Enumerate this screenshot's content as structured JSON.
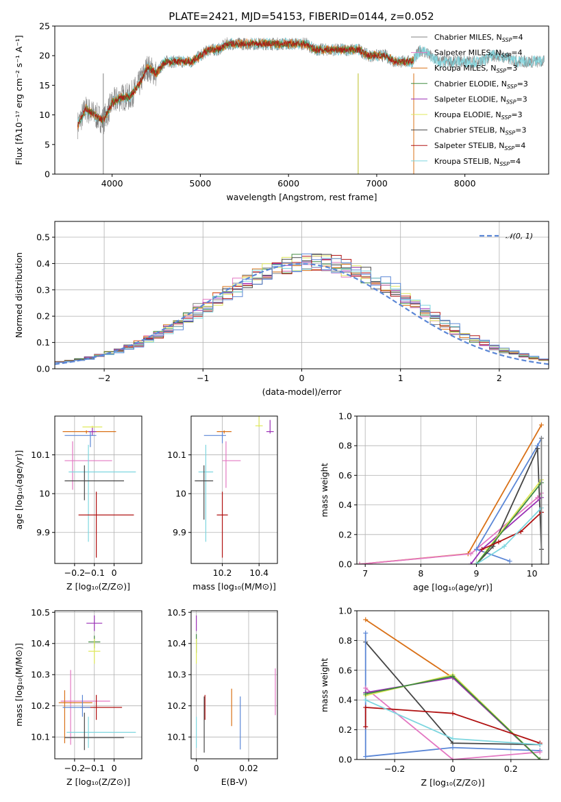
{
  "figure_title": "PLATE=2421, MJD=54153, FIBERID=0144, z=0.052",
  "colors": {
    "Chabrier MILES": "#808080",
    "Salpeter MILES": "#e377c2",
    "Kroupa MILES": "#d97016",
    "Chabrier ELODIE": "#3f8a3f",
    "Salpeter ELODIE": "#9a2fb5",
    "Kroupa ELODIE": "#dfe85a",
    "Chabrier STELIB": "#444444",
    "Salpeter STELIB": "#b01010",
    "Kroupa STELIB": "#7dd6df",
    "blue": "#5a86d6",
    "olive": "#bcbd22"
  },
  "chart_data": [
    {
      "id": "spectrum",
      "type": "line",
      "title": "PLATE=2421, MJD=54153, FIBERID=0144, z=0.052",
      "xlabel": "wavelength [Angstrom, rest frame]",
      "ylabel": "Flux [fλ10⁻¹⁷ erg cm⁻² s⁻¹ A⁻¹]",
      "xlim": [
        3350,
        8950
      ],
      "ylim": [
        0,
        25
      ],
      "xticks": [
        4000,
        5000,
        6000,
        7000,
        8000
      ],
      "yticks": [
        0,
        5,
        10,
        15,
        20,
        25
      ],
      "grid": false,
      "legend_position": "upper right",
      "legend": [
        {
          "label": "Chabrier MILES, N",
          "sub": "SSP",
          "tail": "=4",
          "color": "#808080"
        },
        {
          "label": "Salpeter MILES, N",
          "sub": "SSP",
          "tail": "=4",
          "color": "#e377c2"
        },
        {
          "label": "Kroupa MILES, N",
          "sub": "SSP",
          "tail": "=3",
          "color": "#d97016"
        },
        {
          "label": "Chabrier ELODIE, N",
          "sub": "SSP",
          "tail": "=3",
          "color": "#3f8a3f"
        },
        {
          "label": "Salpeter ELODIE, N",
          "sub": "SSP",
          "tail": "=3",
          "color": "#9a2fb5"
        },
        {
          "label": "Kroupa ELODIE, N",
          "sub": "SSP",
          "tail": "=3",
          "color": "#dfe85a"
        },
        {
          "label": "Chabrier STELIB, N",
          "sub": "SSP",
          "tail": "=3",
          "color": "#444444"
        },
        {
          "label": "Salpeter STELIB, N",
          "sub": "SSP",
          "tail": "=4",
          "color": "#b01010"
        },
        {
          "label": "Kroupa STELIB, N",
          "sub": "SSP",
          "tail": "=4",
          "color": "#7dd6df"
        }
      ],
      "data_points": {
        "x": [
          3600,
          3700,
          3800,
          3900,
          4000,
          4100,
          4200,
          4300,
          4400,
          4500,
          4600,
          4700,
          4800,
          4900,
          5000,
          5100,
          5200,
          5300,
          5400,
          5500,
          5600,
          5700,
          5800,
          5900,
          6000,
          6100,
          6200,
          6300,
          6400,
          6500,
          6600,
          6700,
          6800,
          6900,
          7000,
          7100,
          7200,
          7300,
          7400,
          7500,
          7600,
          7700,
          7800,
          7900,
          8000,
          8100,
          8200,
          8300,
          8400,
          8600,
          8800
        ],
        "y": [
          8,
          11,
          10,
          9,
          12,
          13,
          13,
          15,
          18,
          17,
          19,
          19,
          19,
          19,
          20,
          21,
          21,
          22,
          22,
          22,
          22,
          22,
          22,
          22,
          22,
          22,
          22,
          21,
          21,
          21,
          21,
          21,
          21,
          20,
          20,
          20,
          19,
          19,
          19,
          21,
          20,
          19,
          19,
          19,
          19,
          19,
          19,
          20,
          20,
          19,
          19
        ]
      },
      "dropout_lines": [
        {
          "x": 6790,
          "color": "#bcbd22"
        },
        {
          "x": 7420,
          "color": "#d97016"
        },
        {
          "x": 3900,
          "color": "#808080"
        }
      ]
    },
    {
      "id": "residual_hist",
      "type": "line",
      "xlabel": "(data-model)/error",
      "ylabel": "Normed distribution",
      "xlim": [
        -2.5,
        2.5
      ],
      "ylim": [
        0,
        0.56
      ],
      "xticks": [
        -2,
        -1,
        0,
        1,
        2
      ],
      "yticks": [
        0.0,
        0.1,
        0.2,
        0.3,
        0.4,
        0.5
      ],
      "grid": true,
      "legend_position": "upper right",
      "legend_label": "𝒩(0, 1)",
      "bin_width": 0.1,
      "note": "step histograms for each of the 9 SSP model fits follow a standard normal curve"
    },
    {
      "id": "age_vs_Z",
      "type": "scatter",
      "xlabel": "Z [log₁₀(Z/Z⊙)]",
      "ylabel": "age  [log₁₀(age/yr)]",
      "xlim": [
        -0.3,
        0.14
      ],
      "ylim": [
        9.82,
        10.2
      ],
      "xticks": [
        -0.2,
        -0.1,
        0.0
      ],
      "yticks": [
        9.9,
        10.0,
        10.1
      ],
      "grid": true,
      "points": [
        {
          "x": -0.11,
          "y": 10.172,
          "xerr": [
            0.05,
            0.05
          ],
          "yerr": [
            0.002,
            0.003
          ],
          "color": "#dfe85a"
        },
        {
          "x": -0.14,
          "y": 10.16,
          "xerr": [
            0.12,
            0.15
          ],
          "yerr": [
            0.005,
            0.003
          ],
          "color": "#d97016"
        },
        {
          "x": -0.11,
          "y": 10.16,
          "xerr": [
            0.02,
            0.02
          ],
          "yerr": [
            0.01,
            0.01
          ],
          "color": "#9a2fb5"
        },
        {
          "x": -0.12,
          "y": 10.15,
          "xerr": [
            0.13,
            0.03
          ],
          "yerr": [
            0.03,
            0.01
          ],
          "color": "#5a86d6"
        },
        {
          "x": -0.21,
          "y": 10.085,
          "xerr": [
            0.04,
            0.2
          ],
          "yerr": [
            0.075,
            0.05
          ],
          "color": "#e377c2"
        },
        {
          "x": -0.13,
          "y": 10.056,
          "xerr": [
            0.1,
            0.24
          ],
          "yerr": [
            0.18,
            0.07
          ],
          "color": "#7dd6df"
        },
        {
          "x": -0.15,
          "y": 10.033,
          "xerr": [
            0.1,
            0.2
          ],
          "yerr": [
            0.05,
            0.04
          ],
          "color": "#444444"
        },
        {
          "x": -0.09,
          "y": 9.945,
          "xerr": [
            0.09,
            0.19
          ],
          "yerr": [
            0.11,
            0.06
          ],
          "color": "#b01010"
        }
      ]
    },
    {
      "id": "age_vs_mass",
      "type": "scatter",
      "xlabel": "mass [log₁₀(M/M⊙)]",
      "ylabel": "",
      "xlim": [
        10.03,
        10.5
      ],
      "ylim": [
        9.82,
        10.2
      ],
      "xticks": [
        10.2,
        10.4
      ],
      "yticks": [
        9.9,
        10.0,
        10.1
      ],
      "grid": true,
      "points": [
        {
          "x": 10.4,
          "y": 10.175,
          "xerr": [
            0.02,
            0.02
          ],
          "yerr": [
            0.003,
            0.04
          ],
          "color": "#dfe85a"
        },
        {
          "x": 10.46,
          "y": 10.16,
          "xerr": [
            0.02,
            0.02
          ],
          "yerr": [
            0.005,
            0.03
          ],
          "color": "#9a2fb5"
        },
        {
          "x": 10.21,
          "y": 10.16,
          "xerr": [
            0.04,
            0.04
          ],
          "yerr": [
            0.005,
            0.003
          ],
          "color": "#d97016"
        },
        {
          "x": 10.2,
          "y": 10.15,
          "xerr": [
            0.1,
            0.02
          ],
          "yerr": [
            0.02,
            0.01
          ],
          "color": "#5a86d6"
        },
        {
          "x": 10.22,
          "y": 10.085,
          "xerr": [
            0.02,
            0.08
          ],
          "yerr": [
            0.07,
            0.05
          ],
          "color": "#e377c2"
        },
        {
          "x": 10.11,
          "y": 10.056,
          "xerr": [
            0.04,
            0.04
          ],
          "yerr": [
            0.18,
            0.07
          ],
          "color": "#7dd6df"
        },
        {
          "x": 10.1,
          "y": 10.033,
          "xerr": [
            0.05,
            0.05
          ],
          "yerr": [
            0.1,
            0.04
          ],
          "color": "#444444"
        },
        {
          "x": 10.2,
          "y": 9.945,
          "xerr": [
            0.03,
            0.03
          ],
          "yerr": [
            0.11,
            0.06
          ],
          "color": "#b01010"
        }
      ]
    },
    {
      "id": "massweight_vs_age",
      "type": "line",
      "xlabel": "age  [log₁₀(age/yr)]",
      "ylabel": "mass weight",
      "xlim": [
        6.85,
        10.3
      ],
      "ylim": [
        0,
        1
      ],
      "xticks": [
        7,
        8,
        9,
        10
      ],
      "yticks": [
        0.0,
        0.2,
        0.4,
        0.6,
        0.8,
        1.0
      ],
      "grid": true,
      "series": [
        {
          "color": "#d97016",
          "x": [
            6.9,
            8.85,
            10.17
          ],
          "y": [
            0.0,
            0.07,
            0.94
          ]
        },
        {
          "color": "#e377c2",
          "x": [
            6.9,
            8.9,
            10.1,
            10.17
          ],
          "y": [
            0.0,
            0.07,
            0.45,
            0.48
          ]
        },
        {
          "color": "#5a86d6",
          "x": [
            9.6,
            9.0,
            10.1,
            10.17
          ],
          "y": [
            0.02,
            0.1,
            0.8,
            0.85
          ]
        },
        {
          "color": "#444444",
          "x": [
            9.0,
            9.3,
            10.1,
            10.17
          ],
          "y": [
            0.0,
            0.12,
            0.78,
            0.1
          ]
        },
        {
          "color": "#9a2fb5",
          "x": [
            8.9,
            9.1,
            10.17
          ],
          "y": [
            0.0,
            0.1,
            0.45
          ]
        },
        {
          "color": "#dfe85a",
          "x": [
            9.0,
            9.2,
            10.17
          ],
          "y": [
            0.0,
            0.1,
            0.57
          ]
        },
        {
          "color": "#3f8a3f",
          "x": [
            9.0,
            10.17
          ],
          "y": [
            0.0,
            0.55
          ]
        },
        {
          "color": "#b01010",
          "x": [
            9.1,
            9.4,
            9.8,
            10.17
          ],
          "y": [
            0.1,
            0.15,
            0.22,
            0.35
          ]
        },
        {
          "color": "#7dd6df",
          "x": [
            9.0,
            9.5,
            10.17
          ],
          "y": [
            0.0,
            0.12,
            0.38
          ]
        },
        {
          "color": "#808080",
          "x": [
            10.17,
            10.17
          ],
          "y": [
            0.0,
            0.85
          ]
        }
      ]
    },
    {
      "id": "mass_vs_Z",
      "type": "scatter",
      "xlabel": "Z [log₁₀(Z/Z⊙)]",
      "ylabel": "mass [log₁₀(M/M⊙)]",
      "xlim": [
        -0.3,
        0.14
      ],
      "ylim": [
        10.03,
        10.505
      ],
      "xticks": [
        -0.2,
        -0.1,
        0.0
      ],
      "yticks": [
        10.1,
        10.2,
        10.3,
        10.4,
        10.5
      ],
      "grid": true,
      "points": [
        {
          "x": -0.1,
          "y": 10.465,
          "xerr": [
            0.04,
            0.04
          ],
          "yerr": [
            0.025,
            0.025
          ],
          "color": "#9a2fb5"
        },
        {
          "x": -0.1,
          "y": 10.405,
          "xerr": [
            0.03,
            0.03
          ],
          "yerr": [
            0.02,
            0.02
          ],
          "color": "#3f8a3f"
        },
        {
          "x": -0.1,
          "y": 10.375,
          "xerr": [
            0.03,
            0.03
          ],
          "yerr": [
            0.04,
            0.04
          ],
          "color": "#dfe85a"
        },
        {
          "x": -0.22,
          "y": 10.215,
          "xerr": [
            0.05,
            0.2
          ],
          "yerr": [
            0.14,
            0.1
          ],
          "color": "#e377c2"
        },
        {
          "x": -0.25,
          "y": 10.21,
          "xerr": [
            0.03,
            0.14
          ],
          "yerr": [
            0.13,
            0.04
          ],
          "color": "#d97016"
        },
        {
          "x": -0.09,
          "y": 10.195,
          "xerr": [
            0.08,
            0.13
          ],
          "yerr": [
            0.04,
            0.04
          ],
          "color": "#b01010"
        },
        {
          "x": -0.16,
          "y": 10.195,
          "xerr": [
            0.1,
            0.04
          ],
          "yerr": [
            0.03,
            0.04
          ],
          "color": "#5a86d6"
        },
        {
          "x": -0.13,
          "y": 10.115,
          "xerr": [
            0.11,
            0.24
          ],
          "yerr": [
            0.05,
            0.05
          ],
          "color": "#7dd6df"
        },
        {
          "x": -0.15,
          "y": 10.098,
          "xerr": [
            0.1,
            0.2
          ],
          "yerr": [
            0.04,
            0.08
          ],
          "color": "#444444"
        }
      ]
    },
    {
      "id": "mass_vs_EBV",
      "type": "scatter",
      "xlabel": "E(B-V)",
      "ylabel": "",
      "xlim": [
        -0.002,
        0.031
      ],
      "ylim": [
        10.03,
        10.505
      ],
      "xticks": [
        0.0,
        0.02
      ],
      "yticks": [
        10.1,
        10.2,
        10.3,
        10.4,
        10.5
      ],
      "grid": true,
      "points": [
        {
          "x": 0.0,
          "y": 10.465,
          "xerr": [
            0,
            0
          ],
          "yerr": [
            0.025,
            0.025
          ],
          "color": "#9a2fb5"
        },
        {
          "x": 0.0,
          "y": 10.4,
          "xerr": [
            0,
            0
          ],
          "yerr": [
            0.03,
            0.03
          ],
          "color": "#3f8a3f"
        },
        {
          "x": 0.0,
          "y": 10.375,
          "xerr": [
            0,
            0
          ],
          "yerr": [
            0.04,
            0.04
          ],
          "color": "#dfe85a"
        },
        {
          "x": 0.0,
          "y": 10.115,
          "xerr": [
            0,
            0
          ],
          "yerr": [
            0.05,
            0.05
          ],
          "color": "#7dd6df"
        },
        {
          "x": 0.003,
          "y": 10.14,
          "xerr": [
            0,
            0
          ],
          "yerr": [
            0.09,
            0.09
          ],
          "color": "#444444"
        },
        {
          "x": 0.0033,
          "y": 10.195,
          "xerr": [
            0,
            0
          ],
          "yerr": [
            0.04,
            0.04
          ],
          "color": "#b01010"
        },
        {
          "x": 0.0135,
          "y": 10.195,
          "xerr": [
            0,
            0
          ],
          "yerr": [
            0.06,
            0.06
          ],
          "color": "#d97016"
        },
        {
          "x": 0.0168,
          "y": 10.16,
          "xerr": [
            0,
            0
          ],
          "yerr": [
            0.1,
            0.07
          ],
          "color": "#5a86d6"
        },
        {
          "x": 0.0302,
          "y": 10.24,
          "xerr": [
            0,
            0
          ],
          "yerr": [
            0.07,
            0.08
          ],
          "color": "#e377c2"
        }
      ]
    },
    {
      "id": "massweight_vs_Z",
      "type": "line",
      "xlabel": "Z [log₁₀(Z/Z⊙)]",
      "ylabel": "mass weight",
      "xlim": [
        -0.33,
        0.33
      ],
      "ylim": [
        0,
        1
      ],
      "xticks": [
        -0.2,
        0.0,
        0.2
      ],
      "yticks": [
        0.0,
        0.2,
        0.4,
        0.6,
        0.8,
        1.0
      ],
      "grid": true,
      "series": [
        {
          "color": "#d97016",
          "x": [
            -0.3,
            0.0,
            0.3
          ],
          "y": [
            0.94,
            0.55,
            0.0
          ]
        },
        {
          "color": "#444444",
          "x": [
            -0.3,
            0.0,
            0.3
          ],
          "y": [
            0.79,
            0.11,
            0.1
          ]
        },
        {
          "color": "#5a86d6",
          "x": [
            -0.3,
            -0.3,
            0.0,
            0.3
          ],
          "y": [
            0.85,
            0.02,
            0.08,
            0.06
          ]
        },
        {
          "color": "#e377c2",
          "x": [
            -0.3,
            0.0,
            0.3
          ],
          "y": [
            0.48,
            0.0,
            0.05
          ]
        },
        {
          "color": "#9a2fb5",
          "x": [
            -0.3,
            0.0,
            0.3
          ],
          "y": [
            0.45,
            0.55,
            0.0
          ]
        },
        {
          "color": "#dfe85a",
          "x": [
            -0.3,
            0.0,
            0.3
          ],
          "y": [
            0.43,
            0.57,
            0.0
          ]
        },
        {
          "color": "#3f8a3f",
          "x": [
            -0.3,
            0.0,
            0.3
          ],
          "y": [
            0.44,
            0.56,
            0.0
          ]
        },
        {
          "color": "#b01010",
          "x": [
            -0.3,
            -0.3,
            0.0,
            0.3
          ],
          "y": [
            0.22,
            0.35,
            0.31,
            0.11
          ]
        },
        {
          "color": "#7dd6df",
          "x": [
            -0.3,
            0.0,
            0.3
          ],
          "y": [
            0.4,
            0.14,
            0.1
          ]
        }
      ]
    }
  ]
}
